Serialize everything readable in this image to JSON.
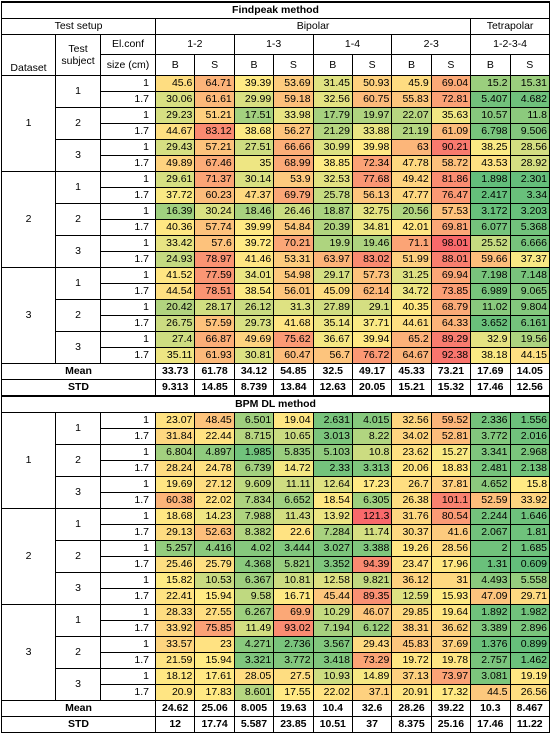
{
  "header": {
    "test_setup": "Test setup",
    "bipolar": "Bipolar",
    "tetrapolar": "Tetrapolar",
    "dataset": "Dataset",
    "test_subject": "Test subject",
    "el_conf": "El.conf",
    "size": "size (cm)",
    "pairs": [
      "1-2",
      "1-3",
      "1-4",
      "2-3",
      "1-2-3-4"
    ],
    "b": "B",
    "s": "S"
  },
  "datasets": [
    1,
    2,
    3
  ],
  "subjects": [
    1,
    2,
    3
  ],
  "sizes": [
    1,
    1.7
  ],
  "sections": [
    {
      "title": "Findpeak method",
      "rows": [
        [
          45.6,
          64.71,
          39.39,
          53.69,
          31.45,
          50.93,
          45.9,
          69.04,
          15.2,
          15.31
        ],
        [
          30.06,
          61.61,
          29.99,
          59.18,
          32.56,
          60.75,
          55.83,
          72.81,
          5.407,
          4.682
        ],
        [
          29.23,
          51.21,
          17.51,
          33.98,
          17.79,
          19.97,
          22.07,
          35.63,
          10.57,
          11.8
        ],
        [
          44.67,
          83.12,
          38.68,
          56.27,
          21.29,
          33.88,
          21.19,
          61.09,
          6.798,
          9.506
        ],
        [
          29.43,
          57.21,
          27.51,
          66.66,
          30.99,
          39.98,
          63,
          90.21,
          38.25,
          28.56
        ],
        [
          49.89,
          67.46,
          35,
          68.99,
          38.85,
          72.34,
          47.78,
          58.72,
          43.53,
          28.92
        ],
        [
          29.61,
          71.37,
          30.14,
          53.9,
          32.53,
          77.68,
          49.42,
          81.86,
          1.898,
          2.301
        ],
        [
          37.72,
          60.23,
          47.37,
          69.79,
          25.78,
          56.13,
          47.77,
          76.47,
          2.417,
          3.34
        ],
        [
          16.39,
          30.24,
          18.46,
          26.46,
          18.87,
          32.75,
          20.56,
          57.53,
          3.172,
          3.203
        ],
        [
          40.36,
          57.74,
          39.99,
          54.84,
          20.39,
          34.81,
          42.01,
          69.81,
          6.077,
          5.368
        ],
        [
          33.42,
          57.6,
          39.72,
          70.21,
          19.9,
          19.46,
          71.1,
          98.01,
          25.52,
          6.666
        ],
        [
          24.93,
          78.97,
          41.46,
          53.31,
          63.97,
          83.02,
          51.99,
          88.01,
          59.66,
          37.37
        ],
        [
          41.52,
          77.59,
          34.01,
          54.98,
          29.17,
          57.73,
          31.25,
          69.94,
          7.198,
          7.148
        ],
        [
          44.54,
          78.51,
          38.54,
          56.01,
          45.09,
          62.14,
          34.72,
          73.85,
          6.989,
          9.065
        ],
        [
          20.42,
          28.17,
          26.12,
          31.3,
          27.89,
          29.1,
          40.35,
          68.79,
          11.02,
          9.804
        ],
        [
          26.75,
          57.59,
          29.73,
          41.68,
          35.14,
          37.71,
          44.61,
          64.33,
          3.652,
          6.161
        ],
        [
          27.4,
          66.87,
          49.69,
          75.62,
          36.67,
          39.94,
          65.2,
          89.29,
          32.9,
          19.56
        ],
        [
          35.11,
          61.93,
          30.81,
          60.47,
          56.7,
          76.72,
          64.67,
          92.38,
          38.18,
          44.15
        ]
      ],
      "mean_label": "Mean",
      "mean": [
        33.73,
        61.78,
        34.12,
        54.85,
        32.5,
        49.17,
        45.33,
        73.21,
        17.69,
        14.05
      ],
      "std_label": "STD",
      "std": [
        9.313,
        14.85,
        8.739,
        13.84,
        12.63,
        20.05,
        15.21,
        15.32,
        17.46,
        12.56
      ]
    },
    {
      "title": "BPM DL method",
      "rows": [
        [
          23.07,
          48.45,
          6.501,
          19.04,
          2.631,
          4.015,
          32.56,
          59.52,
          2.336,
          1.556
        ],
        [
          31.84,
          22.44,
          8.715,
          10.65,
          3.013,
          8.22,
          34.02,
          52.81,
          3.772,
          2.016
        ],
        [
          6.804,
          4.897,
          1.985,
          5.835,
          5.103,
          10.8,
          23.62,
          15.27,
          3.341,
          2.968
        ],
        [
          28.24,
          24.78,
          6.739,
          14.72,
          2.33,
          3.313,
          20.06,
          18.83,
          2.481,
          2.138
        ],
        [
          19.69,
          27.12,
          9.609,
          11.11,
          12.64,
          17.23,
          26.7,
          37.81,
          4.652,
          15.8
        ],
        [
          60.38,
          22.02,
          7.834,
          6.652,
          18.54,
          6.305,
          26.38,
          101.1,
          52.59,
          33.92
        ],
        [
          18.68,
          14.23,
          7.988,
          11.43,
          13.92,
          121.3,
          31.76,
          80.54,
          2.244,
          1.646
        ],
        [
          29.13,
          52.63,
          8.382,
          22.6,
          7.284,
          11.74,
          30.37,
          41.6,
          2.067,
          1.81
        ],
        [
          5.257,
          4.416,
          4.02,
          3.444,
          3.027,
          3.388,
          19.26,
          28.56,
          2,
          1.685
        ],
        [
          25.46,
          25.79,
          4.368,
          5.821,
          3.352,
          94.39,
          23.47,
          17.96,
          1.31,
          0.609
        ],
        [
          15.82,
          10.53,
          6.367,
          10.81,
          12.58,
          9.821,
          36.12,
          31,
          4.493,
          5.558
        ],
        [
          22.41,
          15.94,
          9.58,
          16.71,
          45.44,
          89.35,
          12.59,
          15.93,
          47.09,
          29.71
        ],
        [
          28.33,
          27.55,
          6.267,
          69.9,
          10.29,
          46.07,
          29.85,
          19.64,
          1.892,
          1.982
        ],
        [
          33.92,
          75.85,
          11.49,
          93.02,
          7.194,
          6.122,
          38.31,
          36.62,
          3.389,
          2.896
        ],
        [
          33.57,
          23,
          4.271,
          2.736,
          3.567,
          29.43,
          45.83,
          37.69,
          1.376,
          0.899
        ],
        [
          21.59,
          15.94,
          3.321,
          3.772,
          3.418,
          73.29,
          19.72,
          19.78,
          2.757,
          1.462
        ],
        [
          18.12,
          17.61,
          28.05,
          27.5,
          10.93,
          14.89,
          37.13,
          73.97,
          3.081,
          19.19
        ],
        [
          20.9,
          17.83,
          8.601,
          17.55,
          22.02,
          37.1,
          20.91,
          17.32,
          44.5,
          26.56
        ]
      ],
      "mean_label": "Mean",
      "mean": [
        24.62,
        25.06,
        8.005,
        19.63,
        10.4,
        32.6,
        28.26,
        39.22,
        10.3,
        8.467
      ],
      "std_label": "STD",
      "std": [
        12,
        17.74,
        5.587,
        23.85,
        10.51,
        37,
        8.375,
        25.16,
        17.46,
        11.22
      ]
    }
  ]
}
